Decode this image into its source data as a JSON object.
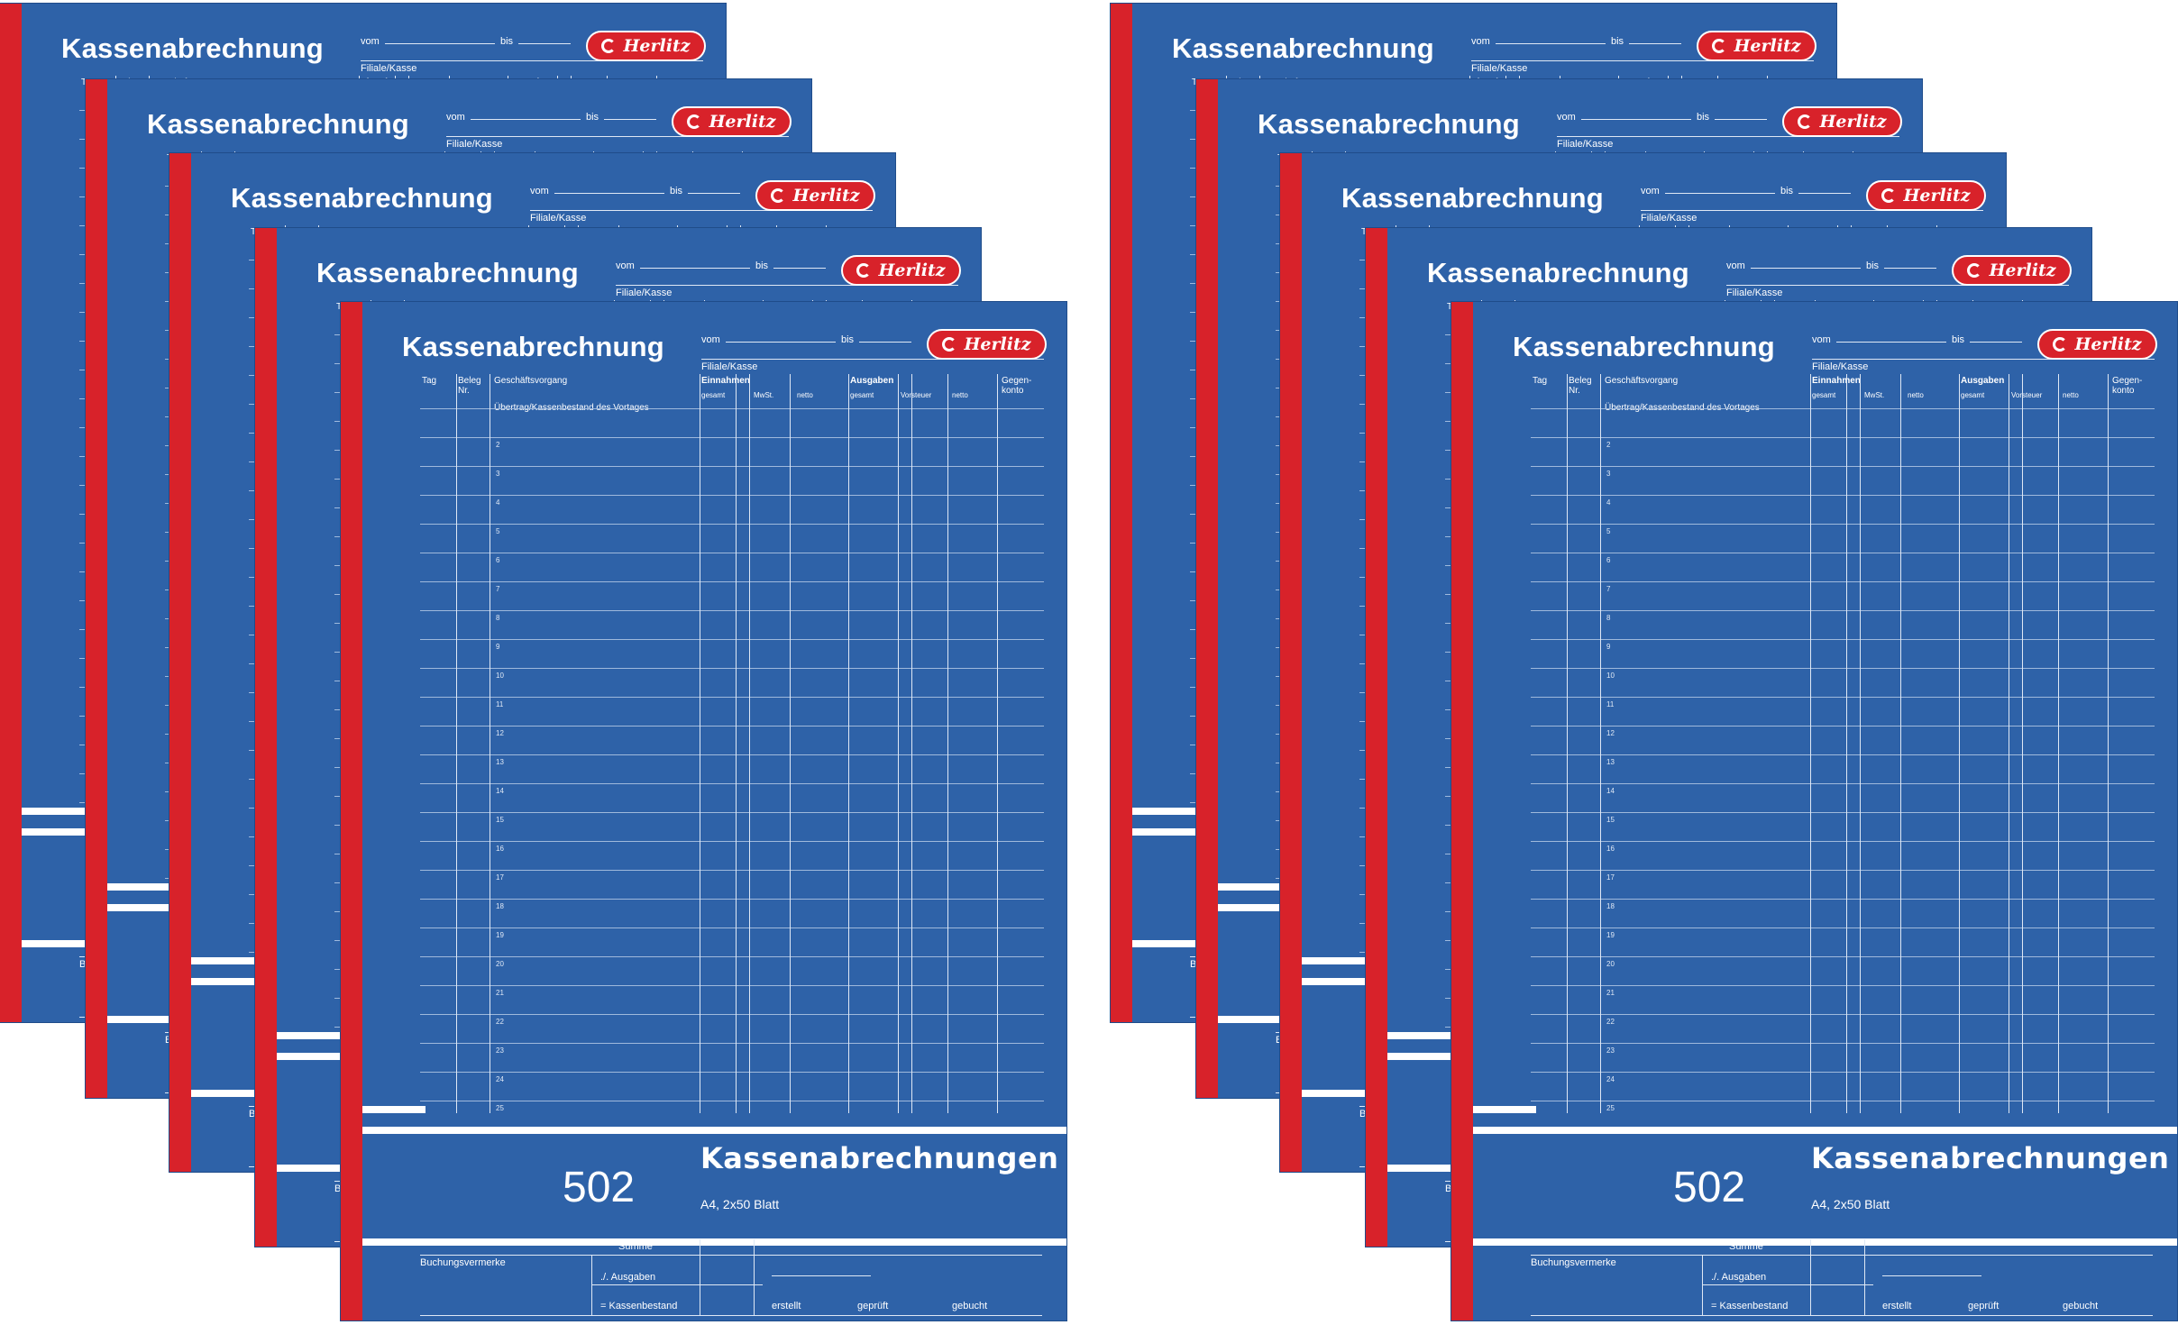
{
  "product": {
    "title": "Kassenabrechnung",
    "vom_label": "vom",
    "bis_label": "bis",
    "filiale_label": "Filiale/Kasse",
    "brand": "Herlitz",
    "columns": {
      "tag": "Tag",
      "beleg": "Beleg Nr.",
      "vorgang": "Geschäftsvorgang",
      "einnahmen": "Einnahmen",
      "ausgaben": "Ausgaben",
      "gegenkonto": "Gegen-konto",
      "gesamt": "gesamt",
      "mwst": "MwSt.",
      "netto": "netto",
      "vorsteuer": "Vorsteuer"
    },
    "first_row_text": "Übertrag/Kassenbestand des Vortages",
    "form_number": "502",
    "band_title": "Kassenabrechnungen",
    "format": "A4, 2x50 Blatt",
    "footer": {
      "buchungsvermerke": "Buchungsvermerke",
      "summe": "Summe",
      "ausgaben": "./. Ausgaben",
      "kassenbestand": "= Kassenbestand",
      "erstellt": "erstellt",
      "geprueft": "geprüft",
      "gebucht": "gebucht"
    }
  },
  "colors": {
    "cover_blue": "#2e62a8",
    "spine_red": "#d8222a",
    "background": "#ffffff"
  },
  "stacks": 2,
  "pads_per_stack": 5
}
